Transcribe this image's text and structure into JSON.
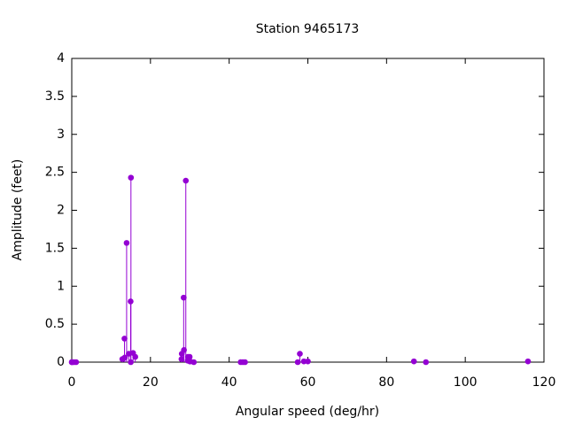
{
  "chart_data": {
    "type": "impulse",
    "title": "Station 9465173",
    "x_label": "Angular speed (deg/hr)",
    "y_label": "Amplitude (feet)",
    "xlim": [
      0,
      120
    ],
    "xticks": [
      0,
      20,
      40,
      60,
      80,
      100,
      120
    ],
    "ylim": [
      0,
      4
    ],
    "yticks": [
      0,
      0.5,
      1,
      1.5,
      2,
      2.5,
      3,
      3.5,
      4
    ],
    "series": [
      {
        "color": "#9400d3",
        "x": [
          0,
          0.041,
          0.082,
          0.544,
          1.098,
          12.854,
          13.399,
          13.472,
          13.943,
          14.497,
          14.959,
          15.0,
          15.041,
          15.585,
          16.139,
          27.895,
          27.968,
          28.44,
          28.513,
          28.984,
          29.456,
          29.528,
          29.959,
          30.0,
          30.082,
          31.016,
          42.927,
          43.476,
          44.025,
          57.424,
          57.968,
          58.984,
          60.0,
          86.952,
          90.0,
          115.937
        ],
        "values": [
          0,
          0,
          0,
          0,
          0,
          0.04,
          0.31,
          0.06,
          1.57,
          0.11,
          0.8,
          0,
          2.43,
          0.12,
          0.07,
          0.04,
          0.11,
          0.85,
          0.16,
          2.39,
          0.02,
          0.07,
          0.07,
          0.01,
          0.01,
          0,
          0,
          0,
          0,
          0,
          0.11,
          0.01,
          0.01,
          0.01,
          0,
          0.01
        ]
      }
    ]
  }
}
